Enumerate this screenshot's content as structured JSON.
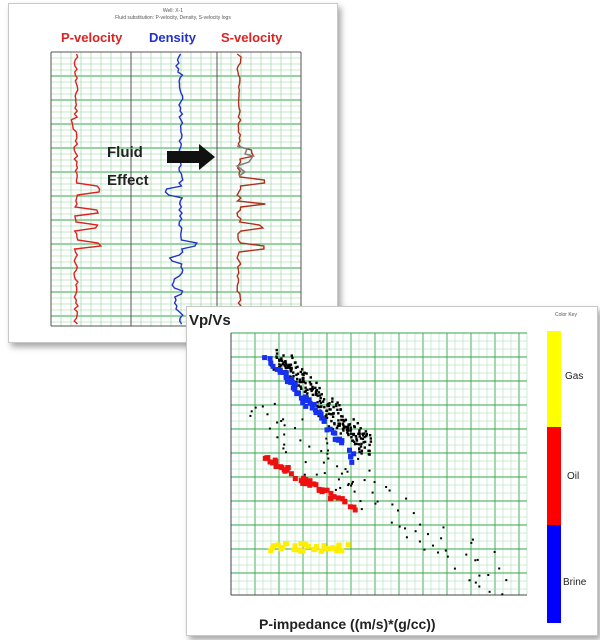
{
  "logs": {
    "header_lines": [
      "Well: X-1",
      "Fluid substitution: P-velocity, Density, S-velocity logs"
    ],
    "tracks": [
      {
        "title": "P-velocity",
        "color": "#dd2222"
      },
      {
        "title": "Density",
        "color": "#2233cc"
      },
      {
        "title": "S-velocity",
        "color": "#dd2222"
      }
    ],
    "annotation": {
      "line1": "Fluid",
      "line2": "Effect"
    }
  },
  "crossplot": {
    "ylabel": "Vp/Vs",
    "xlabel": "P-impedance ((m/s)*(g/cc))",
    "colorbar": {
      "header": "Color Key",
      "segments": [
        {
          "label": "Gas",
          "color": "#ffff00"
        },
        {
          "label": "Oil",
          "color": "#ff0000"
        },
        {
          "label": "Brine",
          "color": "#0000ff"
        }
      ]
    }
  }
}
